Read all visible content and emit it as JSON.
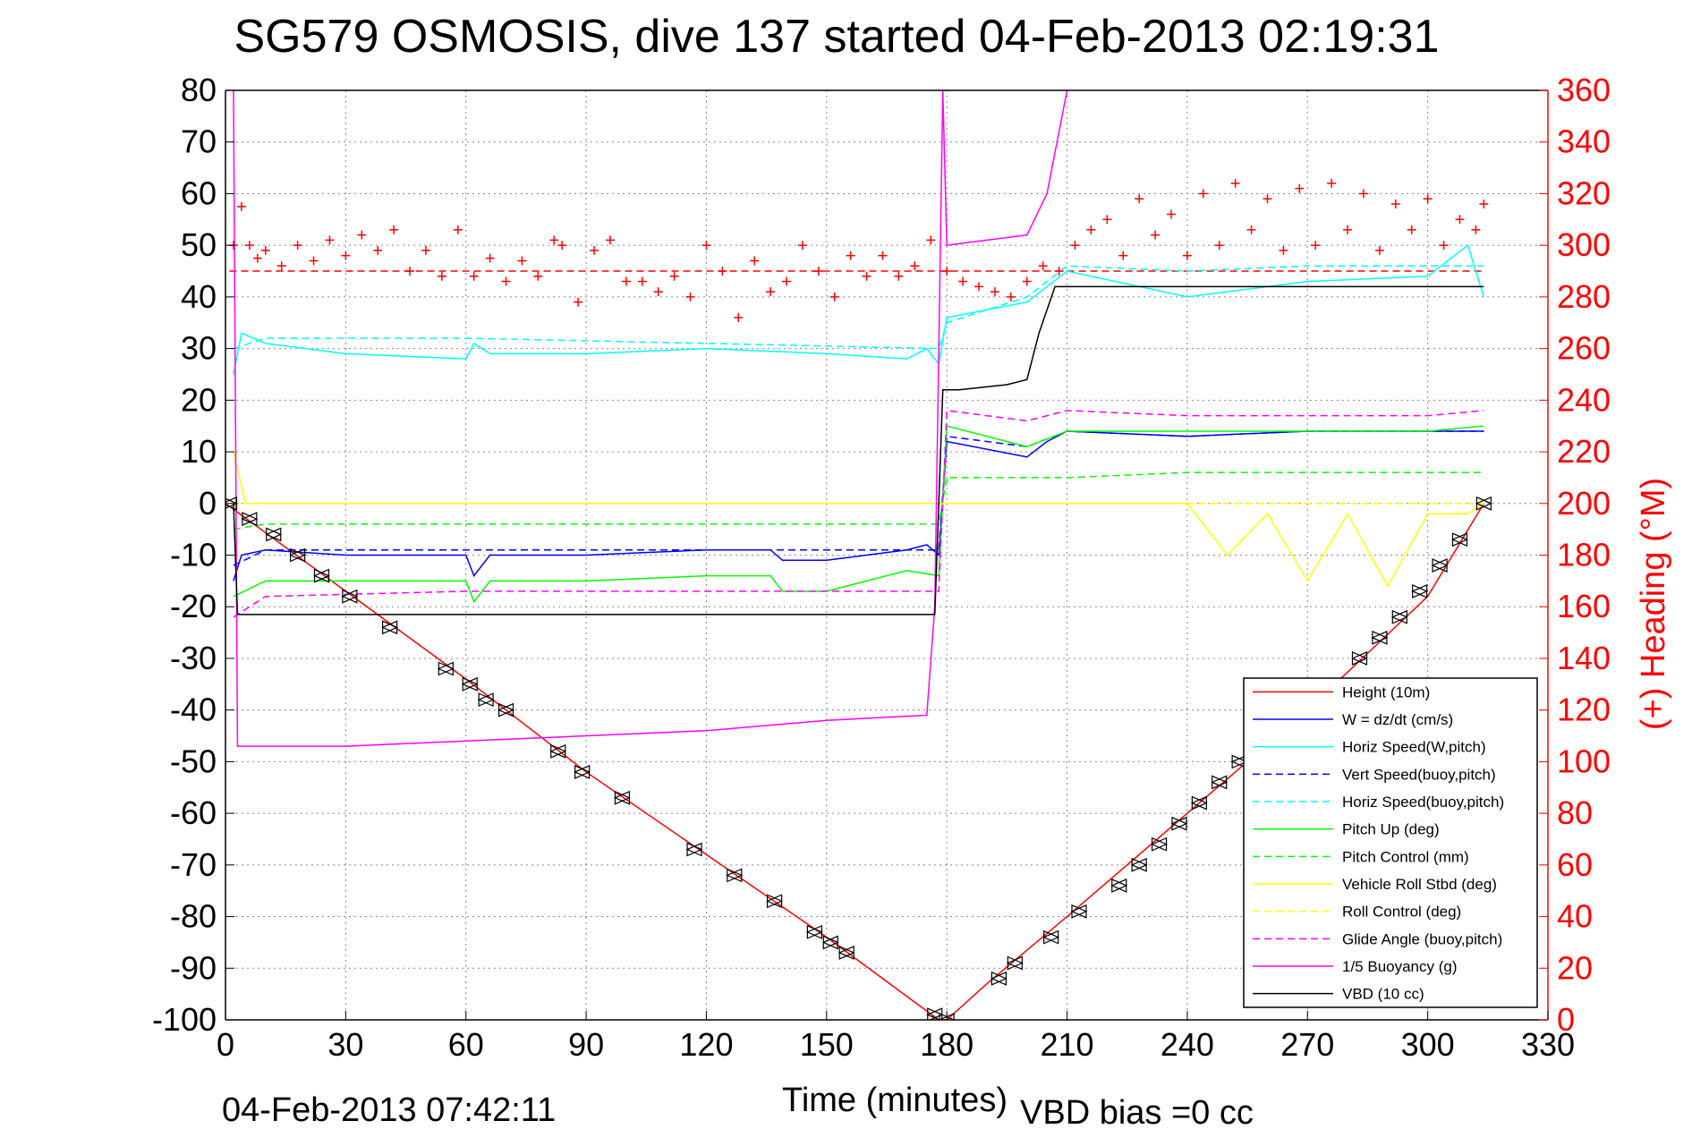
{
  "chart_data": {
    "type": "line",
    "title": "SG579 OSMOSIS, dive 137 started 04-Feb-2013 02:19:31",
    "xlabel": "Time (minutes)",
    "ylabel_right": "(+) Heading (°M)",
    "footer_left": "04-Feb-2013 07:42:11",
    "footer_right": "VBD bias =0 cc",
    "xlim": [
      0,
      330
    ],
    "ylim": [
      -100,
      80
    ],
    "ylim_right": [
      0,
      360
    ],
    "xticks": [
      0,
      30,
      60,
      90,
      120,
      150,
      180,
      210,
      240,
      270,
      300,
      330
    ],
    "yticks": [
      -100,
      -90,
      -80,
      -70,
      -60,
      -50,
      -40,
      -30,
      -20,
      -10,
      0,
      10,
      20,
      30,
      40,
      50,
      60,
      70,
      80
    ],
    "yticks_right": [
      0,
      20,
      40,
      60,
      80,
      100,
      120,
      140,
      160,
      180,
      200,
      220,
      240,
      260,
      280,
      300,
      320,
      340,
      360
    ],
    "grid": true,
    "legend_position": "bottom-right",
    "colors": {
      "red": "#ff0000",
      "blue": "#0000ff",
      "cyan": "#00ffff",
      "green": "#00ff00",
      "yellow": "#ffff00",
      "magenta": "#ff00ff",
      "black": "#000000"
    },
    "series": [
      {
        "name": "Height (10m)",
        "color": "#ff0000",
        "dash": false,
        "x": [
          0,
          30,
          60,
          90,
          120,
          150,
          178,
          180,
          190,
          210,
          240,
          270,
          300,
          314
        ],
        "y": [
          0,
          -17,
          -34,
          -52,
          -68,
          -84,
          -100,
          -100,
          -93,
          -80,
          -60,
          -40,
          -18,
          0
        ]
      },
      {
        "name": "W = dz/dt (cm/s)",
        "color": "#0000ff",
        "dash": false,
        "x": [
          2,
          4,
          10,
          30,
          60,
          62,
          66,
          90,
          120,
          136,
          139,
          150,
          170,
          175,
          178,
          180,
          200,
          205,
          210,
          240,
          270,
          300,
          314
        ],
        "y": [
          -15,
          -10,
          -9,
          -10,
          -10,
          -14,
          -10,
          -10,
          -9,
          -9,
          -11,
          -11,
          -9,
          -8,
          -10,
          12,
          9,
          12,
          14,
          13,
          14,
          14,
          14
        ]
      },
      {
        "name": "Horiz Speed(W,pitch)",
        "color": "#00ffff",
        "dash": false,
        "x": [
          2,
          4,
          10,
          30,
          60,
          62,
          66,
          90,
          120,
          150,
          170,
          175,
          178,
          180,
          200,
          210,
          240,
          270,
          300,
          310,
          314
        ],
        "y": [
          25,
          33,
          31,
          29,
          28,
          31,
          29,
          29,
          30,
          29,
          28,
          30,
          27,
          36,
          39,
          45,
          40,
          43,
          44,
          50,
          40
        ]
      },
      {
        "name": "Vert Speed(buoy,pitch)",
        "color": "#0000ff",
        "dash": true,
        "x": [
          2,
          10,
          60,
          120,
          178,
          180,
          200,
          210,
          240,
          270,
          300,
          314
        ],
        "y": [
          -12,
          -9,
          -9,
          -9,
          -9,
          13,
          11,
          14,
          13,
          14,
          14,
          14
        ]
      },
      {
        "name": "Horiz Speed(buoy,pitch)",
        "color": "#00ffff",
        "dash": true,
        "x": [
          2,
          10,
          60,
          120,
          178,
          180,
          200,
          210,
          240,
          270,
          300,
          314
        ],
        "y": [
          30,
          32,
          32,
          31,
          30,
          35,
          40,
          46,
          45,
          46,
          46,
          46
        ]
      },
      {
        "name": "Pitch Up (deg)",
        "color": "#00ff00",
        "dash": false,
        "x": [
          2,
          10,
          60,
          62,
          66,
          90,
          120,
          136,
          139,
          150,
          170,
          178,
          180,
          200,
          210,
          240,
          270,
          300,
          314
        ],
        "y": [
          -18,
          -15,
          -15,
          -19,
          -15,
          -15,
          -14,
          -14,
          -17,
          -17,
          -13,
          -14,
          15,
          11,
          14,
          14,
          14,
          14,
          15
        ]
      },
      {
        "name": "Pitch Control (mm)",
        "color": "#00ff00",
        "dash": true,
        "x": [
          2,
          10,
          60,
          120,
          178,
          180,
          210,
          240,
          270,
          300,
          314
        ],
        "y": [
          -5,
          -4,
          -4,
          -4,
          -4,
          5,
          5,
          6,
          6,
          6,
          6
        ]
      },
      {
        "name": "Vehicle Roll Stbd (deg)",
        "color": "#ffff00",
        "dash": false,
        "x": [
          2,
          5,
          10,
          30,
          60,
          90,
          120,
          150,
          178,
          180,
          200,
          210,
          230,
          240,
          250,
          260,
          270,
          280,
          290,
          300,
          310,
          314
        ],
        "y": [
          10,
          0,
          0,
          0,
          0,
          0,
          0,
          0,
          0,
          0,
          0,
          0,
          0,
          0,
          -10,
          -2,
          -15,
          -2,
          -16,
          -2,
          -2,
          0
        ]
      },
      {
        "name": "Roll Control (deg)",
        "color": "#ffff00",
        "dash": true,
        "x": [
          2,
          10,
          60,
          120,
          178,
          180,
          210,
          240,
          270,
          300,
          314
        ],
        "y": [
          0,
          0,
          0,
          0,
          0,
          0,
          0,
          0,
          0,
          0,
          0
        ]
      },
      {
        "name": "Glide Angle (buoy,pitch)",
        "color": "#ff00ff",
        "dash": true,
        "x": [
          2,
          10,
          60,
          120,
          178,
          180,
          200,
          210,
          240,
          270,
          300,
          314
        ],
        "y": [
          -22,
          -18,
          -17,
          -17,
          -17,
          18,
          16,
          18,
          17,
          17,
          17,
          18
        ]
      },
      {
        "name": "1/5 Buoyancy (g)",
        "color": "#ff00ff",
        "dash": false,
        "x": [
          2,
          3,
          30,
          60,
          90,
          120,
          150,
          175,
          177,
          179,
          180,
          190,
          200,
          205,
          210
        ],
        "y": [
          80,
          -47,
          -47,
          -46,
          -45,
          -44,
          -42,
          -41,
          -20,
          80,
          50,
          51,
          52,
          60,
          80
        ]
      },
      {
        "name": "VBD (10 cc)",
        "color": "#000000",
        "dash": false,
        "x": [
          2,
          3,
          60,
          120,
          177,
          179,
          183,
          195,
          200,
          203,
          207,
          210,
          240,
          270,
          300,
          314
        ],
        "y": [
          0,
          -21.5,
          -21.5,
          -21.5,
          -21.5,
          22,
          22,
          23,
          24,
          33,
          42,
          42,
          42,
          42,
          42,
          42
        ]
      }
    ],
    "heading_mean": {
      "color": "#ff0000",
      "dash": true,
      "value_deg": 290
    },
    "heading_points": {
      "marker": "+",
      "color": "#ff0000",
      "x": [
        2,
        4,
        6,
        8,
        10,
        14,
        18,
        22,
        26,
        30,
        34,
        38,
        42,
        46,
        50,
        54,
        58,
        62,
        66,
        70,
        74,
        78,
        82,
        84,
        88,
        92,
        96,
        100,
        104,
        108,
        112,
        116,
        120,
        124,
        128,
        132,
        136,
        140,
        144,
        148,
        152,
        156,
        160,
        164,
        168,
        172,
        176,
        180,
        184,
        188,
        192,
        196,
        200,
        204,
        208,
        212,
        216,
        220,
        224,
        228,
        232,
        236,
        240,
        244,
        248,
        252,
        256,
        260,
        264,
        268,
        272,
        276,
        280,
        284,
        288,
        292,
        296,
        300,
        304,
        308,
        312,
        314
      ],
      "y": [
        300,
        315,
        300,
        295,
        298,
        292,
        300,
        294,
        302,
        296,
        304,
        298,
        306,
        290,
        298,
        288,
        306,
        288,
        295,
        286,
        294,
        288,
        302,
        300,
        278,
        298,
        302,
        286,
        286,
        282,
        288,
        280,
        300,
        290,
        272,
        294,
        282,
        286,
        300,
        290,
        280,
        296,
        288,
        296,
        288,
        292,
        302,
        290,
        286,
        284,
        282,
        280,
        286,
        292,
        290,
        300,
        306,
        310,
        296,
        318,
        304,
        312,
        296,
        320,
        300,
        324,
        306,
        318,
        298,
        322,
        300,
        324,
        306,
        320,
        298,
        316,
        306,
        318,
        300,
        310,
        306,
        316
      ]
    },
    "markers": {
      "color": "#000000",
      "x": [
        1,
        6,
        12,
        18,
        24,
        31,
        41,
        55,
        61,
        65,
        70,
        83,
        89,
        99,
        117,
        127,
        137,
        147,
        151,
        155,
        177,
        180,
        193,
        197,
        206,
        213,
        223,
        228,
        233,
        238,
        243,
        248,
        253,
        260,
        268,
        274,
        283,
        288,
        293,
        298,
        303,
        308,
        314
      ],
      "y": [
        0,
        -3,
        -6,
        -10,
        -14,
        -18,
        -24,
        -32,
        -35,
        -38,
        -40,
        -48,
        -52,
        -57,
        -67,
        -72,
        -77,
        -83,
        -85,
        -87,
        -99,
        -100,
        -92,
        -89,
        -84,
        -79,
        -74,
        -70,
        -66,
        -62,
        -58,
        -54,
        -50,
        -45,
        -40,
        -36,
        -30,
        -26,
        -22,
        -17,
        -12,
        -7,
        0
      ]
    }
  }
}
